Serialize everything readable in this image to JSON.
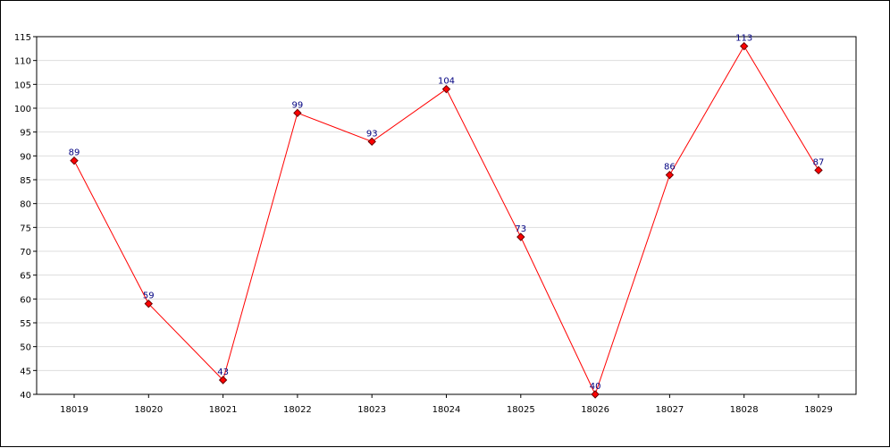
{
  "chart_data": {
    "type": "line",
    "title": "",
    "xlabel": "",
    "ylabel": "",
    "categories": [
      "18019",
      "18020",
      "18021",
      "18022",
      "18023",
      "18024",
      "18025",
      "18026",
      "18027",
      "18028",
      "18029"
    ],
    "series": [
      {
        "values": [
          89,
          59,
          43,
          99,
          93,
          104,
          73,
          40,
          86,
          113,
          87
        ]
      }
    ],
    "ylim": [
      40,
      115
    ],
    "y_ticks": [
      40,
      45,
      50,
      55,
      60,
      65,
      70,
      75,
      80,
      85,
      90,
      95,
      100,
      105,
      110,
      115
    ],
    "grid": true,
    "legend": "none",
    "line_color": "#ff0000",
    "marker_color": "#cc0000",
    "label_color": "#000080",
    "grid_color": "#dddddd"
  }
}
